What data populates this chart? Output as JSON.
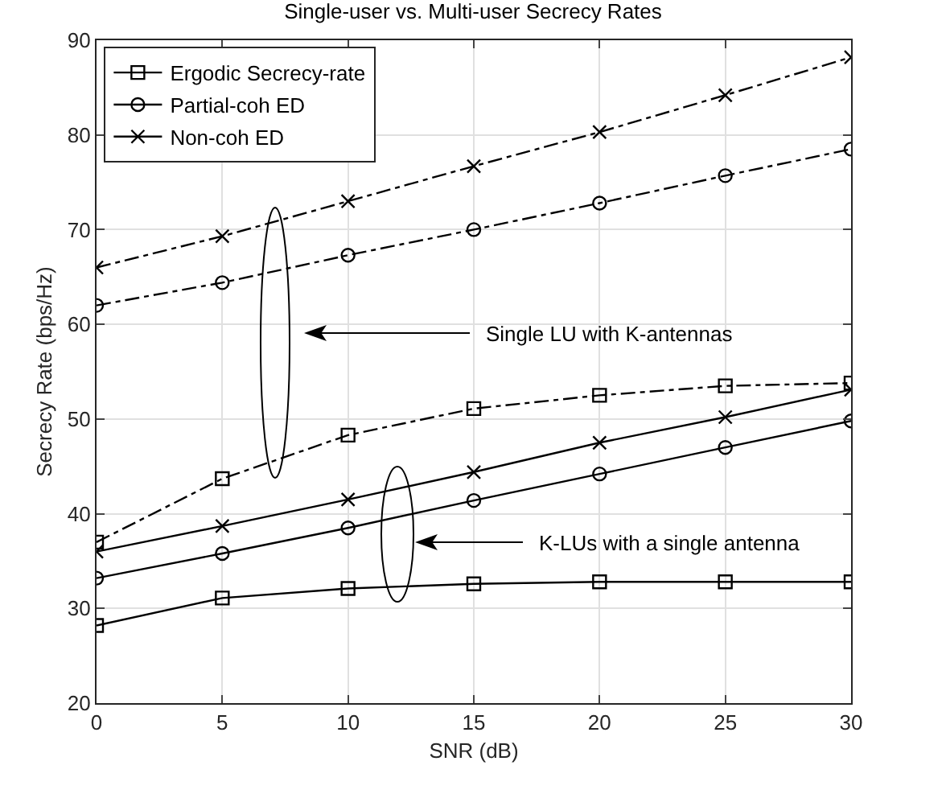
{
  "chart_data": {
    "type": "line",
    "title": "Single-user vs. Multi-user Secrecy Rates",
    "xlabel": "SNR (dB)",
    "ylabel": "Secrecy Rate (bps/Hz)",
    "x": [
      0,
      5,
      10,
      15,
      20,
      25,
      30
    ],
    "series": [
      {
        "name": "Ergodic Secrecy-rate",
        "color": "#000000",
        "marker": "square",
        "line_style": "solid",
        "values": [
          28.2,
          31.1,
          32.1,
          32.6,
          32.8,
          32.8,
          32.8
        ]
      },
      {
        "name": "Partial-coh ED",
        "color": "#000000",
        "marker": "circle",
        "line_style": "solid",
        "values": [
          33.2,
          35.8,
          38.5,
          41.4,
          44.2,
          47.0,
          49.8
        ]
      },
      {
        "name": "Non-coh ED",
        "color": "#000000",
        "marker": "cross",
        "line_style": "solid",
        "values": [
          36.0,
          38.7,
          41.5,
          44.4,
          47.5,
          50.2,
          53.1
        ]
      },
      {
        "color": "#000000",
        "marker": "square",
        "line_style": "dashdot",
        "values": [
          37.0,
          43.7,
          48.3,
          51.1,
          52.5,
          53.5,
          53.8
        ]
      },
      {
        "color": "#000000",
        "marker": "circle",
        "line_style": "dashdot",
        "values": [
          62.0,
          64.4,
          67.3,
          70.0,
          72.8,
          75.7,
          78.5
        ]
      },
      {
        "color": "#000000",
        "marker": "cross",
        "line_style": "dashdot",
        "values": [
          66.0,
          69.3,
          73.0,
          76.7,
          80.3,
          84.2,
          88.2
        ]
      }
    ],
    "annotations": [
      "Single LU with K-antennas",
      "K-LUs with a single antenna"
    ],
    "xlim": [
      0,
      30
    ],
    "xticks": [
      0,
      5,
      10,
      15,
      20,
      25,
      30
    ],
    "ylim": [
      20,
      90
    ],
    "yticks": [
      20,
      30,
      40,
      50,
      60,
      70,
      80,
      90
    ],
    "grid": true,
    "legend": "top left"
  }
}
